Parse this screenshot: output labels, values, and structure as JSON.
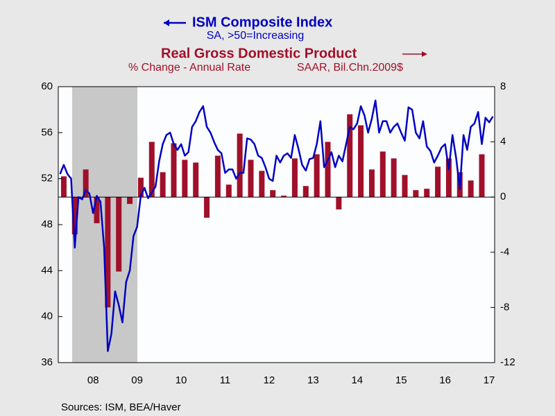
{
  "chart_data": {
    "type": "combo",
    "sources": "Sources:  ISM, BEA/Haver",
    "categories": [
      null,
      null,
      null,
      null,
      null,
      null,
      null,
      null,
      null,
      "08",
      null,
      null,
      null,
      null,
      null,
      null,
      null,
      null,
      null,
      null,
      null,
      "09",
      null,
      null,
      null,
      null,
      null,
      null,
      null,
      null,
      null,
      null,
      null,
      "10",
      null,
      null,
      null,
      null,
      null,
      null,
      null,
      null,
      null,
      null,
      null,
      "11",
      null,
      null,
      null,
      null,
      null,
      null,
      null,
      null,
      null,
      null,
      null,
      "12",
      null,
      null,
      null,
      null,
      null,
      null,
      null,
      null,
      null,
      null,
      null,
      "13",
      null,
      null,
      null,
      null,
      null,
      null,
      null,
      null,
      null,
      null,
      null,
      "14",
      null,
      null,
      null,
      null,
      null,
      null,
      null,
      null,
      null,
      null,
      null,
      "15",
      null,
      null,
      null,
      null,
      null,
      null,
      null,
      null,
      null,
      null,
      null,
      "16",
      null,
      null,
      null,
      null,
      null,
      null,
      null,
      null,
      null,
      null,
      null,
      "17",
      null
    ],
    "ylim": [
      36,
      60
    ],
    "yticks": [
      36,
      40,
      44,
      48,
      52,
      56,
      60
    ],
    "y2lim": [
      -12,
      8
    ],
    "y2ticks": [
      -12,
      -8,
      -4,
      0,
      4,
      8
    ],
    "series": [
      {
        "name": "ISM Composite Index",
        "notes": [
          "SA, >50=Increasing"
        ],
        "type": "line",
        "color": "#0000c0",
        "values": [
          52.4,
          53.2,
          52.4,
          52.0,
          46.0,
          50.4,
          50.2,
          51.0,
          50.7,
          49.0,
          50.5,
          50.0,
          46.0,
          37.0,
          38.5,
          42.2,
          41.0,
          39.5,
          43.0,
          44.0,
          47.0,
          47.8,
          50.5,
          51.2,
          50.3,
          50.8,
          51.3,
          53.5,
          55.0,
          55.8,
          56.0,
          55.0,
          54.5,
          55.0,
          54.0,
          54.3,
          56.5,
          57.0,
          57.8,
          58.3,
          56.5,
          56.0,
          55.2,
          54.5,
          54.2,
          52.5,
          52.8,
          52.8,
          52.0,
          52.5,
          52.5,
          55.5,
          55.4,
          55.0,
          54.0,
          53.8,
          53.0,
          52.0,
          51.8,
          54.0,
          53.4,
          54.0,
          54.2,
          53.8,
          55.8,
          54.6,
          53.2,
          52.7,
          53.7,
          53.8,
          55.0,
          57.0,
          53.0,
          53.6,
          54.3,
          53.0,
          54.0,
          53.5,
          55.0,
          56.5,
          56.3,
          56.8,
          58.3,
          57.5,
          56.0,
          57.2,
          58.8,
          56.0,
          57.0,
          57.0,
          56.0,
          56.5,
          56.8,
          56.0,
          55.3,
          58.2,
          58.0,
          56.0,
          55.5,
          57.0,
          54.8,
          54.4,
          53.4,
          54.0,
          54.7,
          55.0,
          52.8,
          55.8,
          53.8,
          51.1,
          55.8,
          54.5,
          56.5,
          56.8,
          57.8,
          55.0,
          57.3,
          56.9,
          57.4
        ]
      },
      {
        "name": "Real Gross Domestic Product",
        "notes": [
          "% Change - Annual Rate",
          "SAAR, Bil.Chn.2009$"
        ],
        "type": "bar",
        "axis": "y2",
        "color": "#a0102a",
        "values": [
          null,
          1.5,
          null,
          null,
          -2.7,
          null,
          null,
          2.0,
          null,
          null,
          -1.9,
          null,
          null,
          -8.0,
          null,
          null,
          -5.4,
          null,
          null,
          -0.5,
          null,
          null,
          1.4,
          null,
          null,
          4.0,
          null,
          null,
          1.8,
          null,
          null,
          3.9,
          null,
          null,
          2.7,
          null,
          null,
          2.5,
          null,
          null,
          -1.5,
          null,
          null,
          3.0,
          null,
          null,
          0.9,
          null,
          null,
          4.6,
          null,
          null,
          2.7,
          null,
          null,
          1.9,
          null,
          null,
          0.5,
          null,
          null,
          0.1,
          null,
          null,
          2.8,
          null,
          null,
          0.8,
          null,
          null,
          3.1,
          null,
          null,
          4.0,
          null,
          null,
          -0.9,
          null,
          null,
          6.0,
          null,
          null,
          5.2,
          null,
          null,
          2.0,
          null,
          null,
          3.3,
          null,
          null,
          2.8,
          null,
          null,
          1.6,
          null,
          null,
          0.5,
          null,
          null,
          0.6,
          null,
          null,
          2.2,
          null,
          null,
          2.8,
          null,
          null,
          1.8,
          null,
          null,
          1.2,
          null,
          null,
          3.1,
          null,
          null,
          null
        ]
      }
    ]
  }
}
